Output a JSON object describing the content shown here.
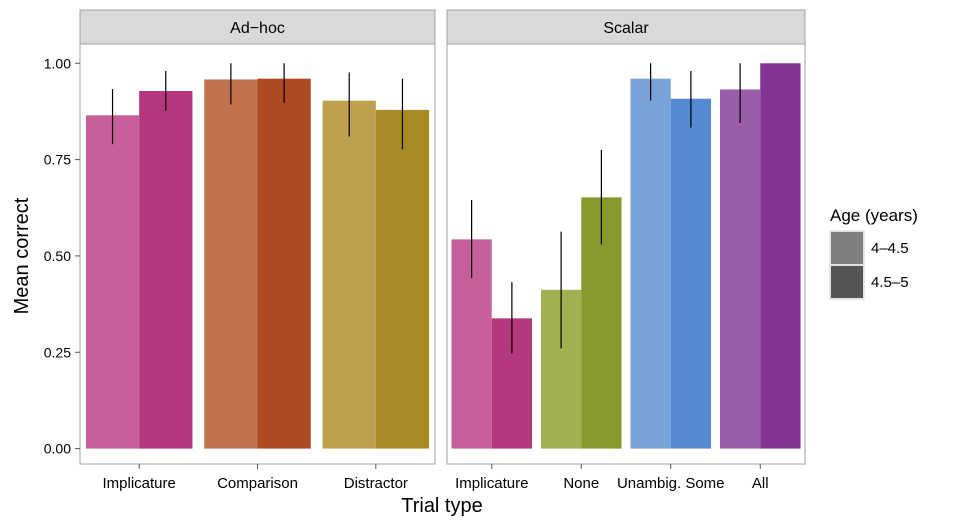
{
  "chart_data": {
    "type": "bar",
    "ylabel": "Mean correct",
    "xlabel": "Trial type",
    "ylim": [
      -0.04,
      1.05
    ],
    "yticks": [
      0.0,
      0.25,
      0.5,
      0.75,
      1.0
    ],
    "ytick_labels": [
      "0.00",
      "0.25",
      "0.50",
      "0.75",
      "1.00"
    ],
    "grid": false,
    "legend": {
      "title": "Age (years)",
      "placement": "right",
      "entries": [
        {
          "label": "4–4.5",
          "swatch": "#7f7f7f"
        },
        {
          "label": "4.5–5",
          "swatch": "#555555"
        }
      ]
    },
    "age_groups": [
      "4–4.5",
      "4.5–5"
    ],
    "panels": [
      {
        "title": "Ad−hoc",
        "categories": [
          {
            "label": "Implicature",
            "values": [
              0.865,
              0.928
            ],
            "err_low": [
              0.79,
              0.877
            ],
            "err_high": [
              0.933,
              0.98
            ],
            "colors": [
              "#c6609a",
              "#b5377e"
            ]
          },
          {
            "label": "Comparison",
            "values": [
              0.958,
              0.96
            ],
            "err_low": [
              0.893,
              0.897
            ],
            "err_high": [
              1.0,
              1.0
            ],
            "colors": [
              "#c1714d",
              "#ad4a22"
            ]
          },
          {
            "label": "Distractor",
            "values": [
              0.903,
              0.879
            ],
            "err_low": [
              0.81,
              0.777
            ],
            "err_high": [
              0.976,
              0.96
            ],
            "colors": [
              "#bfa04f",
              "#a88a25"
            ]
          }
        ]
      },
      {
        "title": "Scalar",
        "categories": [
          {
            "label": "Implicature",
            "values": [
              0.543,
              0.338
            ],
            "err_low": [
              0.443,
              0.247
            ],
            "err_high": [
              0.645,
              0.432
            ],
            "colors": [
              "#c6609a",
              "#b5377e"
            ]
          },
          {
            "label": "None",
            "values": [
              0.412,
              0.652
            ],
            "err_low": [
              0.26,
              0.53
            ],
            "err_high": [
              0.563,
              0.775
            ],
            "colors": [
              "#a0b153",
              "#89982a"
            ]
          },
          {
            "label": "Unambig. Some",
            "values": [
              0.96,
              0.908
            ],
            "err_low": [
              0.903,
              0.833
            ],
            "err_high": [
              1.0,
              0.98
            ],
            "colors": [
              "#77a2da",
              "#558ad0"
            ]
          },
          {
            "label": "All",
            "values": [
              0.932,
              1.0
            ],
            "err_low": [
              0.845,
              1.0
            ],
            "err_high": [
              1.0,
              1.0
            ],
            "colors": [
              "#9b5eab",
              "#823595"
            ]
          }
        ]
      }
    ]
  }
}
